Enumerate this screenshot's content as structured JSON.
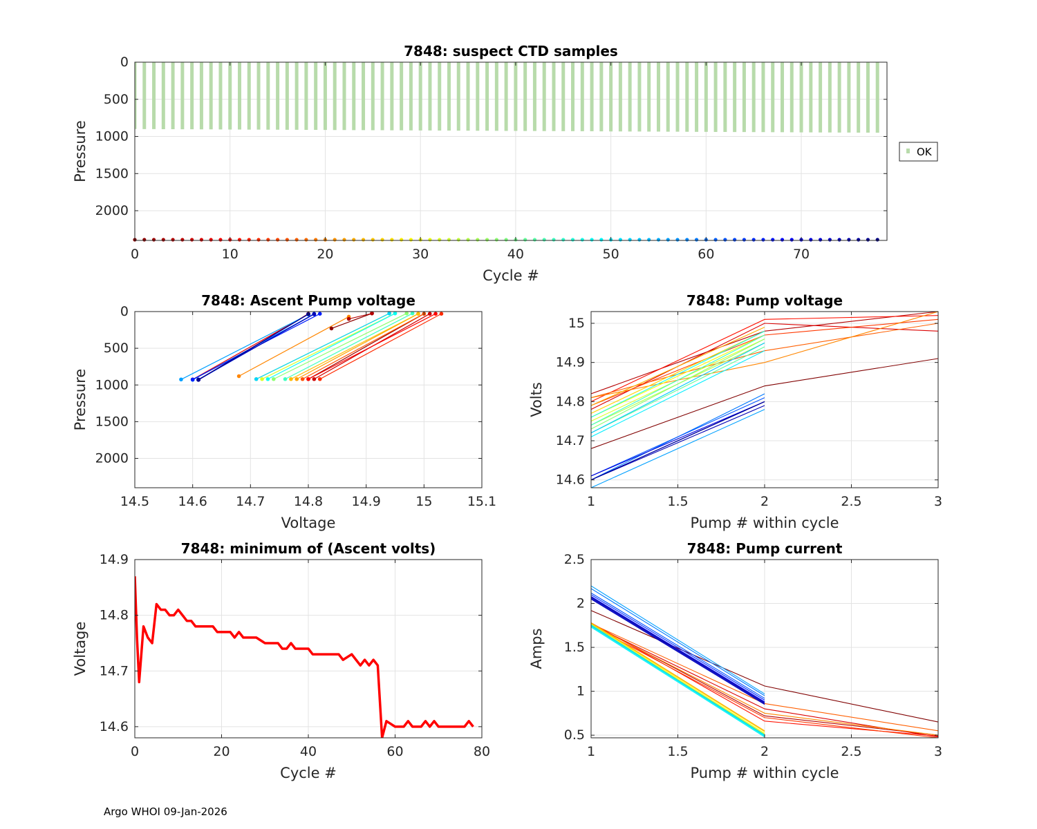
{
  "footer": "Argo WHOI 09-Jan-2026",
  "chart_data": [
    {
      "id": "ctd",
      "type": "scatter",
      "title": "7848: suspect CTD samples",
      "xlabel": "Cycle #",
      "ylabel": "Pressure",
      "xlim": [
        0,
        79
      ],
      "ylim": [
        2400,
        0
      ],
      "xticks": [
        0,
        10,
        20,
        30,
        40,
        50,
        60,
        70
      ],
      "yticks": [
        0,
        500,
        1000,
        1500,
        2000
      ],
      "legend": [
        {
          "label": "OK",
          "color": "#b8dbab",
          "marker": "square"
        }
      ],
      "legend_position": "outside-right",
      "profile_cycles_first": 0,
      "profile_cycles_last": 78,
      "profile_top": 0,
      "profile_bottom_first": 900,
      "profile_bottom_last": 950,
      "profile_color": "#b8dbab",
      "cycle_marker_pressure": 2400,
      "grid": true
    },
    {
      "id": "asc",
      "type": "line",
      "title": "7848: Ascent Pump voltage",
      "xlabel": "Voltage",
      "ylabel": "Pressure",
      "xlim": [
        14.5,
        15.1
      ],
      "ylim": [
        2400,
        0
      ],
      "xticks": [
        14.5,
        14.6,
        14.7,
        14.8,
        14.9,
        15,
        15.1
      ],
      "yticks": [
        0,
        500,
        1000,
        1500,
        2000
      ],
      "series": [
        {
          "cycle": 0,
          "points": [
            [
              14.61,
              930
            ],
            [
              14.8,
              35
            ]
          ]
        },
        {
          "cycle": 3,
          "points": [
            [
              14.61,
              930
            ],
            [
              14.8,
              30
            ]
          ]
        },
        {
          "cycle": 8,
          "points": [
            [
              14.6,
              925
            ],
            [
              14.8,
              35
            ]
          ]
        },
        {
          "cycle": 20,
          "points": [
            [
              14.68,
              880
            ],
            [
              14.87,
              70
            ]
          ]
        },
        {
          "cycle": 28,
          "points": [
            [
              14.71,
              920
            ],
            [
              14.94,
              25
            ]
          ]
        },
        {
          "cycle": 32,
          "points": [
            [
              14.72,
              920
            ],
            [
              14.95,
              25
            ]
          ]
        },
        {
          "cycle": 38,
          "points": [
            [
              14.74,
              920
            ],
            [
              14.97,
              25
            ]
          ]
        },
        {
          "cycle": 44,
          "points": [
            [
              14.76,
              920
            ],
            [
              14.98,
              25
            ]
          ]
        },
        {
          "cycle": 48,
          "points": [
            [
              14.73,
              920
            ],
            [
              14.95,
              25
            ]
          ]
        },
        {
          "cycle": 52,
          "points": [
            [
              14.71,
              920
            ],
            [
              14.94,
              25
            ]
          ]
        },
        {
          "cycle": 56,
          "points": [
            [
              14.58,
              925
            ],
            [
              14.8,
              40
            ]
          ]
        },
        {
          "cycle": 60,
          "points": [
            [
              14.6,
              930
            ],
            [
              14.81,
              35
            ]
          ]
        },
        {
          "cycle": 62,
          "points": [
            [
              14.61,
              930
            ],
            [
              14.81,
              30
            ]
          ]
        },
        {
          "cycle": 66,
          "points": [
            [
              14.6,
              925
            ],
            [
              14.82,
              30
            ]
          ]
        },
        {
          "cycle": 70,
          "points": [
            [
              14.61,
              930
            ],
            [
              14.8,
              35
            ]
          ]
        },
        {
          "cycle": 74,
          "points": [
            [
              14.61,
              925
            ],
            [
              14.81,
              35
            ]
          ]
        },
        {
          "cycle": 77,
          "points": [
            [
              14.61,
              930
            ],
            [
              14.8,
              35
            ]
          ]
        },
        {
          "cycle": 2,
          "points": [
            [
              14.8,
              920
            ],
            [
              15.0,
              30
            ]
          ]
        },
        {
          "cycle": 6,
          "points": [
            [
              14.81,
              920
            ],
            [
              15.01,
              30
            ]
          ]
        },
        {
          "cycle": 10,
          "points": [
            [
              14.8,
              920
            ],
            [
              15.02,
              30
            ]
          ]
        },
        {
          "cycle": 13,
          "points": [
            [
              14.82,
              920
            ],
            [
              15.03,
              30
            ]
          ]
        },
        {
          "cycle": 16,
          "points": [
            [
              14.79,
              920
            ],
            [
              15.0,
              30
            ]
          ]
        },
        {
          "cycle": 22,
          "points": [
            [
              14.78,
              920
            ],
            [
              14.99,
              30
            ]
          ]
        },
        {
          "cycle": 24,
          "points": [
            [
              14.77,
              920
            ],
            [
              14.99,
              30
            ]
          ]
        },
        {
          "cycle": 1,
          "points": [
            [
              14.84,
              230
            ],
            [
              14.91,
              25
            ]
          ]
        },
        {
          "cycle": 4,
          "points": [
            [
              14.87,
              100
            ],
            [
              14.91,
              25
            ]
          ]
        }
      ],
      "grid": true
    },
    {
      "id": "pv",
      "type": "line",
      "title": "7848: Pump voltage",
      "xlabel": "Pump # within cycle",
      "ylabel": "Volts",
      "xlim": [
        1,
        3
      ],
      "ylim": [
        14.58,
        15.03
      ],
      "xticks": [
        1,
        1.5,
        2,
        2.5,
        3
      ],
      "yticks": [
        14.6,
        14.7,
        14.8,
        14.9,
        15
      ],
      "series": [
        {
          "cycle": 0,
          "values": [
            14.68,
            14.84,
            14.91
          ]
        },
        {
          "cycle": 4,
          "values": [
            14.82,
            14.98,
            15.03
          ]
        },
        {
          "cycle": 7,
          "values": [
            14.78,
            15.0,
            14.98
          ]
        },
        {
          "cycle": 11,
          "values": [
            14.8,
            15.01,
            15.02
          ]
        },
        {
          "cycle": 14,
          "values": [
            14.79,
            14.97,
            15.01
          ]
        },
        {
          "cycle": 17,
          "values": [
            14.81,
            14.93,
            15.0
          ]
        },
        {
          "cycle": 20,
          "values": [
            14.81,
            14.9,
            15.03
          ]
        },
        {
          "cycle": 23,
          "values": [
            14.79,
            14.99
          ]
        },
        {
          "cycle": 26,
          "values": [
            14.77,
            14.98
          ]
        },
        {
          "cycle": 29,
          "values": [
            14.76,
            14.97
          ]
        },
        {
          "cycle": 32,
          "values": [
            14.75,
            14.96
          ]
        },
        {
          "cycle": 35,
          "values": [
            14.74,
            14.95
          ]
        },
        {
          "cycle": 38,
          "values": [
            14.73,
            14.96
          ]
        },
        {
          "cycle": 41,
          "values": [
            14.72,
            14.94
          ]
        },
        {
          "cycle": 44,
          "values": [
            14.74,
            14.97
          ]
        },
        {
          "cycle": 47,
          "values": [
            14.76,
            14.98
          ]
        },
        {
          "cycle": 50,
          "values": [
            14.71,
            14.93
          ]
        },
        {
          "cycle": 53,
          "values": [
            14.72,
            14.95
          ]
        },
        {
          "cycle": 56,
          "values": [
            14.58,
            14.78
          ]
        },
        {
          "cycle": 59,
          "values": [
            14.6,
            14.82
          ]
        },
        {
          "cycle": 62,
          "values": [
            14.61,
            14.81
          ]
        },
        {
          "cycle": 65,
          "values": [
            14.6,
            14.8
          ]
        },
        {
          "cycle": 68,
          "values": [
            14.6,
            14.8
          ]
        },
        {
          "cycle": 71,
          "values": [
            14.61,
            14.8
          ]
        },
        {
          "cycle": 74,
          "values": [
            14.6,
            14.79
          ]
        },
        {
          "cycle": 77,
          "values": [
            14.6,
            14.8
          ]
        }
      ],
      "grid": true
    },
    {
      "id": "minv",
      "type": "line",
      "title": "7848: minimum of (Ascent volts)",
      "xlabel": "Cycle #",
      "ylabel": "Voltage",
      "xlim": [
        0,
        80
      ],
      "ylim": [
        14.58,
        14.9
      ],
      "xticks": [
        0,
        20,
        40,
        60,
        80
      ],
      "yticks": [
        14.6,
        14.7,
        14.8,
        14.9
      ],
      "color": "#ff0000",
      "x": [
        0,
        0.5,
        1,
        1.5,
        2,
        3,
        4,
        5,
        6,
        7,
        8,
        9,
        10,
        11,
        12,
        13,
        14,
        16,
        18,
        19,
        20,
        22,
        23,
        24,
        25,
        27,
        28,
        30,
        32,
        33,
        34,
        35,
        36,
        37,
        40,
        41,
        45,
        47,
        48,
        50,
        51,
        52,
        53,
        54,
        55,
        56,
        57,
        58,
        60,
        62,
        63,
        64,
        66,
        67,
        68,
        69,
        70,
        72,
        74,
        76,
        77,
        78
      ],
      "y": [
        14.87,
        14.76,
        14.68,
        14.73,
        14.78,
        14.76,
        14.75,
        14.82,
        14.81,
        14.81,
        14.8,
        14.8,
        14.81,
        14.8,
        14.79,
        14.79,
        14.78,
        14.78,
        14.78,
        14.77,
        14.77,
        14.77,
        14.76,
        14.77,
        14.76,
        14.76,
        14.76,
        14.75,
        14.75,
        14.75,
        14.74,
        14.74,
        14.75,
        14.74,
        14.74,
        14.73,
        14.73,
        14.73,
        14.72,
        14.73,
        14.72,
        14.71,
        14.72,
        14.71,
        14.72,
        14.71,
        14.58,
        14.61,
        14.6,
        14.6,
        14.61,
        14.6,
        14.6,
        14.61,
        14.6,
        14.61,
        14.6,
        14.6,
        14.6,
        14.6,
        14.61,
        14.6
      ],
      "grid": true
    },
    {
      "id": "pc",
      "type": "line",
      "title": "7848: Pump current",
      "xlabel": "Pump # within cycle",
      "ylabel": "Amps",
      "xlim": [
        1,
        3
      ],
      "ylim": [
        0.47,
        2.5
      ],
      "xticks": [
        1,
        1.5,
        2,
        2.5,
        3
      ],
      "yticks": [
        0.5,
        1,
        1.5,
        2,
        2.5
      ],
      "series": [
        {
          "cycle": 0,
          "values": [
            1.92,
            1.06,
            0.65
          ]
        },
        {
          "cycle": 4,
          "values": [
            1.77,
            0.72,
            0.5
          ]
        },
        {
          "cycle": 7,
          "values": [
            1.76,
            0.8,
            0.48
          ]
        },
        {
          "cycle": 11,
          "values": [
            1.78,
            0.66,
            0.49
          ]
        },
        {
          "cycle": 14,
          "values": [
            1.75,
            0.7,
            0.47
          ]
        },
        {
          "cycle": 17,
          "values": [
            1.77,
            0.86,
            0.55
          ]
        },
        {
          "cycle": 20,
          "values": [
            1.76,
            0.75,
            0.5
          ]
        },
        {
          "cycle": 23,
          "values": [
            1.78,
            0.55
          ]
        },
        {
          "cycle": 26,
          "values": [
            1.77,
            0.54
          ]
        },
        {
          "cycle": 29,
          "values": [
            1.76,
            0.52
          ]
        },
        {
          "cycle": 32,
          "values": [
            1.75,
            0.51
          ]
        },
        {
          "cycle": 35,
          "values": [
            1.76,
            0.5
          ]
        },
        {
          "cycle": 38,
          "values": [
            1.75,
            0.51
          ]
        },
        {
          "cycle": 41,
          "values": [
            1.76,
            0.49
          ]
        },
        {
          "cycle": 44,
          "values": [
            1.75,
            0.5
          ]
        },
        {
          "cycle": 47,
          "values": [
            1.74,
            0.49
          ]
        },
        {
          "cycle": 50,
          "values": [
            1.73,
            0.48
          ]
        },
        {
          "cycle": 53,
          "values": [
            1.75,
            0.5
          ]
        },
        {
          "cycle": 56,
          "values": [
            2.2,
            0.97
          ]
        },
        {
          "cycle": 59,
          "values": [
            2.17,
            0.95
          ]
        },
        {
          "cycle": 62,
          "values": [
            2.12,
            0.92
          ]
        },
        {
          "cycle": 65,
          "values": [
            2.1,
            0.9
          ]
        },
        {
          "cycle": 68,
          "values": [
            2.08,
            0.88
          ]
        },
        {
          "cycle": 71,
          "values": [
            2.06,
            0.86
          ]
        },
        {
          "cycle": 74,
          "values": [
            2.05,
            0.85
          ]
        },
        {
          "cycle": 77,
          "values": [
            2.07,
            0.87
          ]
        }
      ],
      "grid": true
    }
  ]
}
